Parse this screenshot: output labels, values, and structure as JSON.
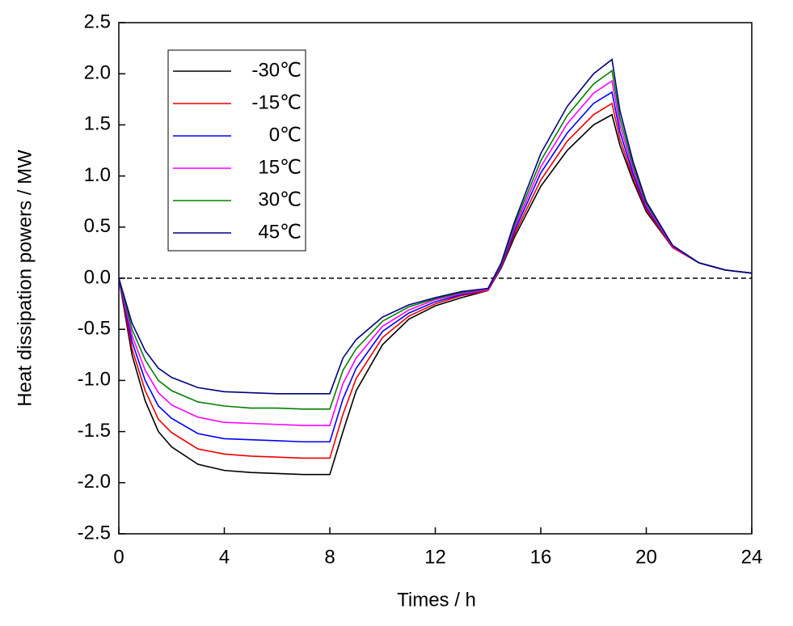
{
  "chart_data": {
    "type": "line",
    "xlabel": "Times / h",
    "ylabel": "Heat dissipation powers / MW",
    "x": [
      0,
      0.5,
      1,
      1.5,
      2,
      3,
      4,
      5,
      6,
      7,
      8,
      8.5,
      9,
      10,
      11,
      12,
      13,
      14,
      14.5,
      15,
      16,
      17,
      18,
      18.7,
      19,
      19.5,
      20,
      21,
      22,
      23,
      24
    ],
    "series": [
      {
        "name": "-30℃",
        "color": "#000000",
        "values": [
          0,
          -0.75,
          -1.2,
          -1.5,
          -1.65,
          -1.82,
          -1.88,
          -1.9,
          -1.91,
          -1.92,
          -1.92,
          -1.5,
          -1.1,
          -0.65,
          -0.4,
          -0.27,
          -0.19,
          -0.12,
          0.1,
          0.4,
          0.9,
          1.25,
          1.5,
          1.6,
          1.3,
          0.95,
          0.65,
          0.3,
          0.15,
          0.08,
          0.05
        ]
      },
      {
        "name": "-15℃",
        "color": "#ee0000",
        "values": [
          0,
          -0.69,
          -1.1,
          -1.38,
          -1.51,
          -1.67,
          -1.72,
          -1.74,
          -1.75,
          -1.76,
          -1.76,
          -1.33,
          -0.98,
          -0.58,
          -0.37,
          -0.25,
          -0.17,
          -0.12,
          0.11,
          0.43,
          0.96,
          1.34,
          1.6,
          1.71,
          1.36,
          0.98,
          0.67,
          0.3,
          0.15,
          0.08,
          0.05
        ]
      },
      {
        "name": "0℃",
        "color": "#0000ff",
        "values": [
          0,
          -0.62,
          -1.0,
          -1.25,
          -1.37,
          -1.52,
          -1.57,
          -1.58,
          -1.59,
          -1.6,
          -1.6,
          -1.18,
          -0.88,
          -0.52,
          -0.34,
          -0.23,
          -0.16,
          -0.11,
          0.12,
          0.46,
          1.03,
          1.42,
          1.71,
          1.82,
          1.43,
          1.02,
          0.69,
          0.31,
          0.15,
          0.08,
          0.05
        ]
      },
      {
        "name": "15℃",
        "color": "#ff00ff",
        "values": [
          0,
          -0.56,
          -0.9,
          -1.12,
          -1.24,
          -1.36,
          -1.41,
          -1.42,
          -1.43,
          -1.44,
          -1.44,
          -1.03,
          -0.78,
          -0.47,
          -0.31,
          -0.21,
          -0.15,
          -0.11,
          0.13,
          0.49,
          1.09,
          1.51,
          1.81,
          1.93,
          1.5,
          1.06,
          0.71,
          0.31,
          0.15,
          0.08,
          0.05
        ]
      },
      {
        "name": "30℃",
        "color": "#008000",
        "values": [
          0,
          -0.5,
          -0.8,
          -1.0,
          -1.1,
          -1.21,
          -1.25,
          -1.27,
          -1.27,
          -1.28,
          -1.28,
          -0.9,
          -0.69,
          -0.42,
          -0.28,
          -0.2,
          -0.14,
          -0.1,
          0.14,
          0.52,
          1.15,
          1.59,
          1.9,
          2.03,
          1.57,
          1.1,
          0.73,
          0.32,
          0.15,
          0.08,
          0.05
        ]
      },
      {
        "name": "45℃",
        "color": "#000080",
        "values": [
          0,
          -0.44,
          -0.71,
          -0.88,
          -0.97,
          -1.07,
          -1.11,
          -1.12,
          -1.13,
          -1.13,
          -1.13,
          -0.78,
          -0.6,
          -0.38,
          -0.26,
          -0.19,
          -0.13,
          -0.1,
          0.15,
          0.55,
          1.22,
          1.68,
          2.0,
          2.14,
          1.64,
          1.14,
          0.75,
          0.32,
          0.15,
          0.08,
          0.05
        ]
      }
    ],
    "xlim": [
      0,
      24
    ],
    "xticks": [
      0,
      4,
      8,
      12,
      16,
      20,
      24
    ],
    "ylim": [
      -2.5,
      2.5
    ],
    "yticks": [
      -2.5,
      {
        "value": -2,
        "label": "-2.0"
      },
      -1.5,
      {
        "value": -1,
        "label": "-1.0"
      },
      -0.5,
      {
        "value": 0,
        "label": "0.0"
      },
      0.5,
      {
        "value": 1,
        "label": "1.0"
      },
      1.5,
      {
        "value": 2,
        "label": "2.0"
      },
      2.5
    ],
    "reference_line": 0,
    "legend": "upper left"
  }
}
